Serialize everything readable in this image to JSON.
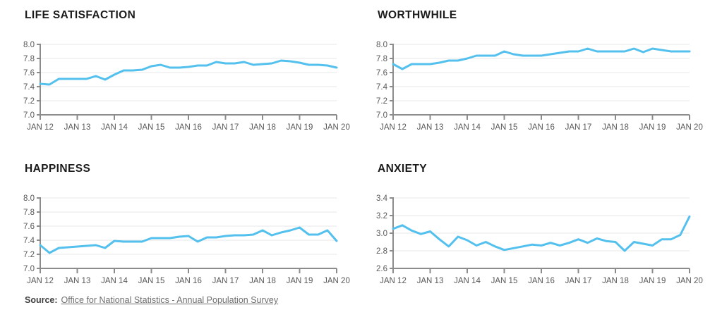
{
  "colors": {
    "line": "#53c0ee",
    "gridline": "#e7e7e7",
    "axis": "#8c8c8c",
    "tick_label": "#585858",
    "title": "#1b1b1b",
    "source_label": "#3f3f3f",
    "source_link": "#6e6e6e"
  },
  "source": {
    "label": "Source:",
    "link": "Office for National Statistics - Annual Population Survey"
  },
  "chart_data": [
    {
      "type": "line",
      "title": "LIFE SATISFACTION",
      "x_tick_labels": [
        "JAN 12",
        "JAN 13",
        "JAN 14",
        "JAN 15",
        "JAN 16",
        "JAN 17",
        "JAN 18",
        "JAN 19",
        "JAN 20"
      ],
      "x_frequency": "quarterly",
      "ylim": [
        7.0,
        8.0
      ],
      "yticks": [
        7.0,
        7.2,
        7.4,
        7.6,
        7.8,
        8.0
      ],
      "grid": true,
      "line_color": "#53c0ee",
      "values": [
        7.44,
        7.43,
        7.51,
        7.51,
        7.51,
        7.51,
        7.55,
        7.5,
        7.57,
        7.63,
        7.63,
        7.64,
        7.69,
        7.71,
        7.67,
        7.67,
        7.68,
        7.7,
        7.7,
        7.75,
        7.73,
        7.73,
        7.75,
        7.71,
        7.72,
        7.73,
        7.77,
        7.76,
        7.74,
        7.71,
        7.71,
        7.7,
        7.67
      ]
    },
    {
      "type": "line",
      "title": "WORTHWHILE",
      "x_tick_labels": [
        "JAN 12",
        "JAN 13",
        "JAN 14",
        "JAN 15",
        "JAN 16",
        "JAN 17",
        "JAN 18",
        "JAN 19",
        "JAN 20"
      ],
      "x_frequency": "quarterly",
      "ylim": [
        7.0,
        8.0
      ],
      "yticks": [
        7.0,
        7.2,
        7.4,
        7.6,
        7.8,
        8.0
      ],
      "grid": true,
      "line_color": "#53c0ee",
      "values": [
        7.72,
        7.65,
        7.72,
        7.72,
        7.72,
        7.74,
        7.77,
        7.77,
        7.8,
        7.84,
        7.84,
        7.84,
        7.9,
        7.86,
        7.84,
        7.84,
        7.84,
        7.86,
        7.88,
        7.9,
        7.9,
        7.94,
        7.9,
        7.9,
        7.9,
        7.9,
        7.94,
        7.89,
        7.94,
        7.92,
        7.9,
        7.9,
        7.9
      ]
    },
    {
      "type": "line",
      "title": "HAPPINESS",
      "x_tick_labels": [
        "JAN 12",
        "JAN 13",
        "JAN 14",
        "JAN 15",
        "JAN 16",
        "JAN 17",
        "JAN 18",
        "JAN 19",
        "JAN 20"
      ],
      "x_frequency": "quarterly",
      "ylim": [
        7.0,
        8.0
      ],
      "yticks": [
        7.0,
        7.2,
        7.4,
        7.6,
        7.8,
        8.0
      ],
      "grid": true,
      "line_color": "#53c0ee",
      "values": [
        7.33,
        7.22,
        7.29,
        7.3,
        7.31,
        7.32,
        7.33,
        7.29,
        7.39,
        7.38,
        7.38,
        7.38,
        7.43,
        7.43,
        7.43,
        7.45,
        7.46,
        7.38,
        7.44,
        7.44,
        7.46,
        7.47,
        7.47,
        7.48,
        7.54,
        7.47,
        7.51,
        7.54,
        7.58,
        7.48,
        7.48,
        7.54,
        7.39
      ]
    },
    {
      "type": "line",
      "title": "ANXIETY",
      "x_tick_labels": [
        "JAN 12",
        "JAN 13",
        "JAN 14",
        "JAN 15",
        "JAN 16",
        "JAN 17",
        "JAN 18",
        "JAN 19",
        "JAN 20"
      ],
      "x_frequency": "quarterly",
      "ylim": [
        2.6,
        3.4
      ],
      "yticks": [
        2.6,
        2.8,
        3.0,
        3.2,
        3.4
      ],
      "grid": true,
      "line_color": "#53c0ee",
      "values": [
        3.05,
        3.09,
        3.03,
        2.99,
        3.02,
        2.93,
        2.85,
        2.96,
        2.92,
        2.86,
        2.9,
        2.85,
        2.81,
        2.83,
        2.85,
        2.87,
        2.86,
        2.89,
        2.86,
        2.89,
        2.93,
        2.89,
        2.94,
        2.91,
        2.9,
        2.8,
        2.9,
        2.88,
        2.86,
        2.93,
        2.93,
        2.98,
        3.19
      ]
    }
  ]
}
